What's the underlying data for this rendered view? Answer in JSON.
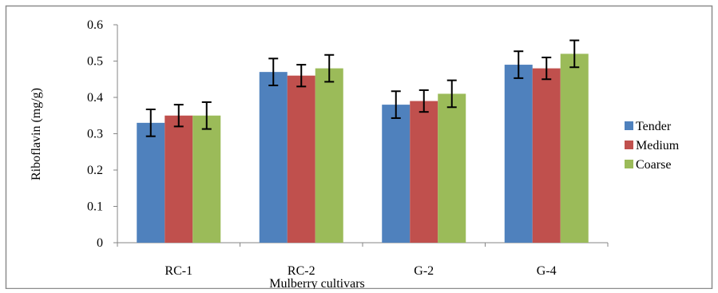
{
  "chart_data": {
    "type": "bar",
    "title": "",
    "xlabel": "Mulberry cultivars",
    "ylabel": "Riboflavin (mg/g)",
    "ylim": [
      0,
      0.6
    ],
    "yticks": [
      "0",
      "0.1",
      "0.2",
      "0.3",
      "0.4",
      "0.5",
      "0.6"
    ],
    "categories": [
      "RC-1",
      "RC-2",
      "G-2",
      "G-4"
    ],
    "series": [
      {
        "name": "Tender",
        "color": "#4F81BD",
        "values": [
          0.33,
          0.47,
          0.38,
          0.49
        ],
        "errors": [
          0.037,
          0.037,
          0.037,
          0.037
        ]
      },
      {
        "name": "Medium",
        "color": "#C0504D",
        "values": [
          0.35,
          0.46,
          0.39,
          0.48
        ],
        "errors": [
          0.03,
          0.03,
          0.03,
          0.03
        ]
      },
      {
        "name": "Coarse",
        "color": "#9BBB59",
        "values": [
          0.35,
          0.48,
          0.41,
          0.52
        ],
        "errors": [
          0.037,
          0.037,
          0.037,
          0.037
        ]
      }
    ],
    "grid": false,
    "legend_position": "right"
  }
}
